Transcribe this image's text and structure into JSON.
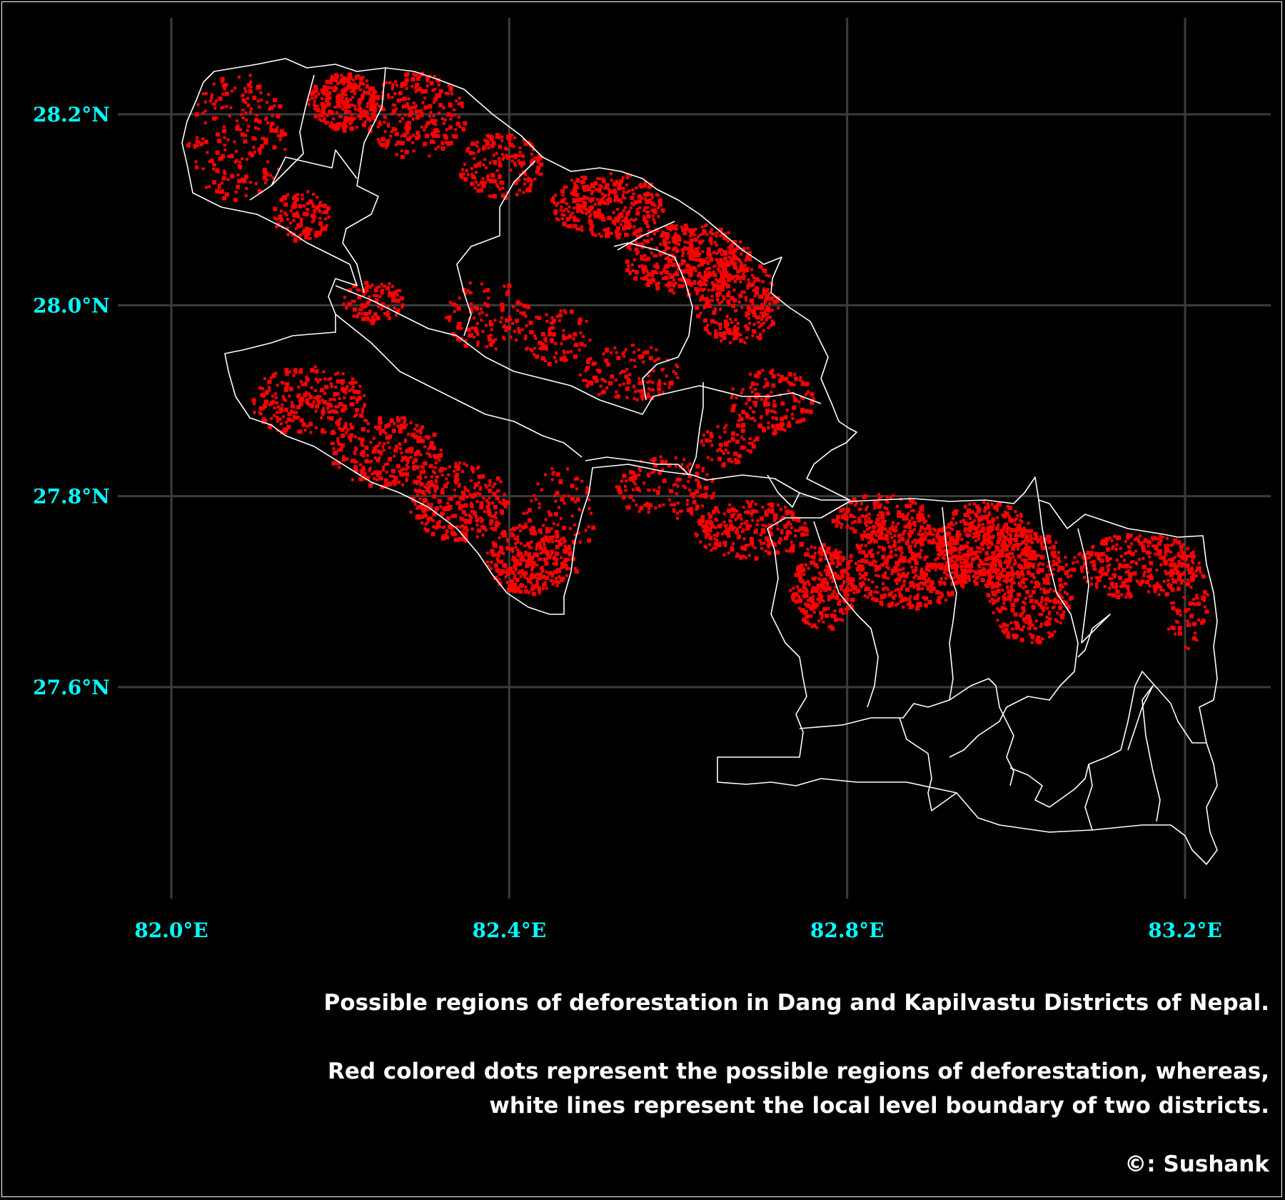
{
  "colors": {
    "background": "#000000",
    "grid": "#3c3c3c",
    "tick_label": "#00ffff",
    "boundary": "#ffffff",
    "deforestation_dot": "#ff0000",
    "caption": "#ffffff"
  },
  "axes": {
    "x_ticks": [
      {
        "value": 82.0,
        "label": "82.0°E"
      },
      {
        "value": 82.4,
        "label": "82.4°E"
      },
      {
        "value": 82.8,
        "label": "82.8°E"
      },
      {
        "value": 83.2,
        "label": "83.2°E"
      }
    ],
    "y_ticks": [
      {
        "value": 28.2,
        "label": "28.2°N"
      },
      {
        "value": 28.0,
        "label": "28.0°N"
      },
      {
        "value": 27.8,
        "label": "27.8°N"
      },
      {
        "value": 27.6,
        "label": "27.6°N"
      }
    ]
  },
  "caption": {
    "title": "Possible regions of deforestation in Dang and Kapilvastu Districts of Nepal.",
    "desc_line1": "Red colored dots represent the possible regions of deforestation, whereas,",
    "desc_line2": "white lines represent the local level boundary of two districts.",
    "credit": "©: Sushank"
  },
  "legend": {
    "dots_meaning": "possible regions of deforestation",
    "lines_meaning": "local level boundary of two districts"
  }
}
